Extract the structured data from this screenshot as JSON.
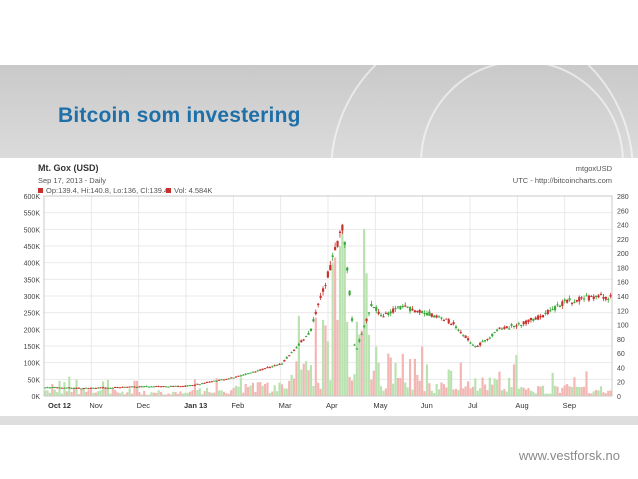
{
  "slide": {
    "title": "Bitcoin som investering",
    "footer": "www.vestforsk.no"
  },
  "chart_header": {
    "market": "Mt. Gox (USD)",
    "date_line": "Sep 17, 2013 - Daily",
    "ohlc": "Op:139.4, Hi:140.8, Lo:136, Cl:139.4",
    "vol": "Vol: 4.584K",
    "symbol": "mtgoxUSD",
    "source": "UTC - http://bitcoincharts.com"
  },
  "colors": {
    "up": "#3aa83a",
    "down": "#c8302c",
    "vol_up": "#b9e2b0",
    "vol_down": "#f2b6b3",
    "grid": "#e9e9e9",
    "title": "#1f6fa8"
  },
  "chart_data": {
    "type": "candlestick",
    "x_tick_labels": [
      "Oct 12",
      "Nov",
      "Dec",
      "Jan 13",
      "Feb",
      "Mar",
      "Apr",
      "May",
      "Jun",
      "Jul",
      "Aug",
      "Sep"
    ],
    "volume_axis": {
      "ticks": [
        "0K",
        "50K",
        "100K",
        "150K",
        "200K",
        "250K",
        "300K",
        "350K",
        "400K",
        "450K",
        "500K",
        "550K",
        "600K"
      ],
      "range": [
        0,
        600000
      ]
    },
    "price_axis": {
      "ticks": [
        "0",
        "20",
        "40",
        "60",
        "80",
        "100",
        "120",
        "140",
        "160",
        "180",
        "200",
        "220",
        "240",
        "260",
        "280"
      ],
      "range": [
        0,
        280
      ]
    },
    "price_series": [
      {
        "month": "Oct 12",
        "price": 12
      },
      {
        "month": "Nov",
        "price": 11
      },
      {
        "month": "Dec",
        "price": 13
      },
      {
        "month": "Jan 13",
        "price": 14
      },
      {
        "month": "Feb",
        "price": 26
      },
      {
        "month": "Mar",
        "price": 45
      },
      {
        "month": "Mar (late)",
        "price": 90
      },
      {
        "month": "Apr (peak)",
        "price": 240
      },
      {
        "month": "Apr (low)",
        "price": 60
      },
      {
        "month": "Apr (end)",
        "price": 130
      },
      {
        "month": "May",
        "price": 112
      },
      {
        "month": "May (mid)",
        "price": 125
      },
      {
        "month": "Jun",
        "price": 118
      },
      {
        "month": "Jun (mid)",
        "price": 103
      },
      {
        "month": "Jul",
        "price": 68
      },
      {
        "month": "Jul (end)",
        "price": 94
      },
      {
        "month": "Aug",
        "price": 100
      },
      {
        "month": "Aug (mid)",
        "price": 112
      },
      {
        "month": "Sep",
        "price": 132
      },
      {
        "month": "Sep 17",
        "price": 139
      }
    ],
    "volume_peaks": [
      {
        "month": "Oct 12",
        "volume": 60000
      },
      {
        "month": "Nov",
        "volume": 55000
      },
      {
        "month": "Dec",
        "volume": 40000
      },
      {
        "month": "Jan 13",
        "volume": 60000
      },
      {
        "month": "Feb",
        "volume": 100000
      },
      {
        "month": "Mar",
        "volume": 250000
      },
      {
        "month": "Apr",
        "volume": 560000
      },
      {
        "month": "May",
        "volume": 150000
      },
      {
        "month": "Jun",
        "volume": 110000
      },
      {
        "month": "Jul",
        "volume": 130000
      },
      {
        "month": "Aug",
        "volume": 80000
      },
      {
        "month": "Sep",
        "volume": 90000
      }
    ]
  }
}
